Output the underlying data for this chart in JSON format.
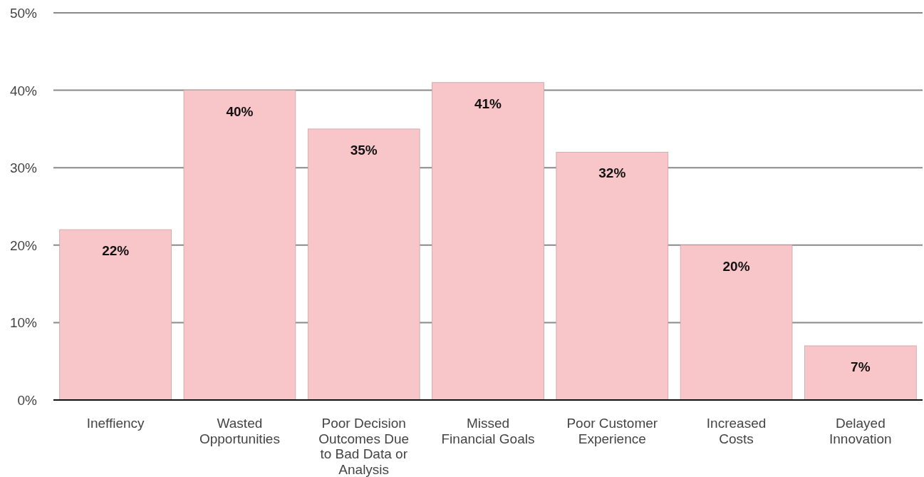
{
  "chart_data": {
    "type": "bar",
    "categories": [
      "Ineffiency",
      "Wasted\nOpportunities",
      "Poor Decision\nOutcomes Due\nto Bad Data or\nAnalysis",
      "Missed\nFinancial Goals",
      "Poor Customer\nExperience",
      "Increased\nCosts",
      "Delayed\nInnovation"
    ],
    "values": [
      22,
      40,
      35,
      41,
      32,
      20,
      7
    ],
    "color": "#f8c6c8",
    "ylim": [
      0,
      50
    ],
    "yticks": [
      {
        "value": 0,
        "label": "0%"
      },
      {
        "value": 10,
        "label": "10%"
      },
      {
        "value": 20,
        "label": "20%"
      },
      {
        "value": 30,
        "label": "30%"
      },
      {
        "value": 40,
        "label": "40%"
      },
      {
        "value": 50,
        "label": "50%"
      }
    ],
    "grid": true,
    "value_labels": [
      "22%",
      "40%",
      "35%",
      "41%",
      "32%",
      "20%",
      "7%"
    ]
  }
}
